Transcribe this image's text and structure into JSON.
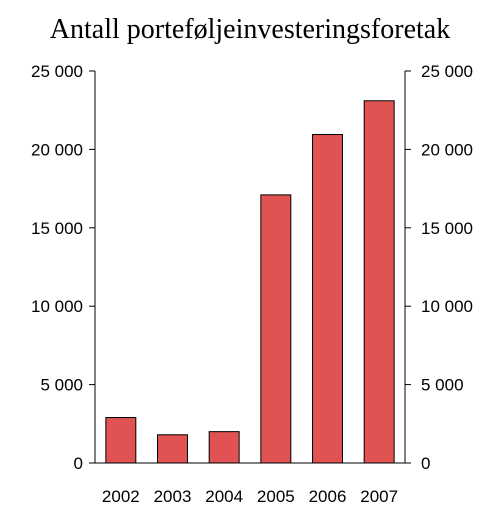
{
  "chart_data": {
    "type": "bar",
    "title": "Antall porteføljeinvesteringsforetak",
    "categories": [
      "2002",
      "2003",
      "2004",
      "2005",
      "2006",
      "2007"
    ],
    "values": [
      2900,
      1800,
      2000,
      17100,
      20950,
      23100
    ],
    "ylim": [
      0,
      25000
    ],
    "yticks": [
      0,
      5000,
      10000,
      15000,
      20000,
      25000
    ],
    "ytick_labels": [
      "0",
      "5 000",
      "10 000",
      "15 000",
      "20 000",
      "25 000"
    ],
    "secondary_y_axis": true,
    "grid": false,
    "legend": "none",
    "bar_color": "#e15252"
  }
}
